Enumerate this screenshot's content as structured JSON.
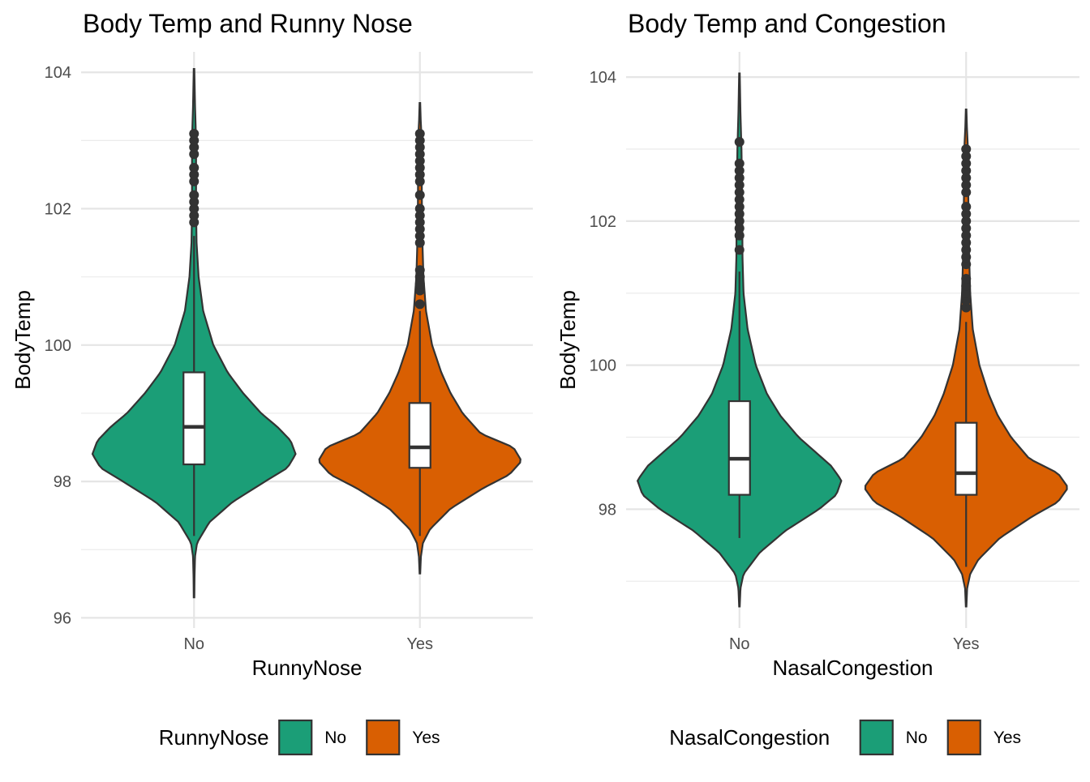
{
  "chart_data": [
    {
      "type": "violin",
      "title": "Body Temp and Runny Nose",
      "xlabel": "RunnyNose",
      "ylabel": "BodyTemp",
      "categories": [
        "No",
        "Yes"
      ],
      "yticks": [
        96,
        98,
        100,
        102,
        104
      ],
      "ylim": [
        95.85,
        104.3
      ],
      "grid": true,
      "legend": {
        "title": "RunnyNose",
        "position": "bottom",
        "entries": [
          "No",
          "Yes"
        ]
      },
      "series": [
        {
          "name": "No",
          "color": "#1B9E77",
          "range": [
            96.3,
            104.05
          ],
          "box": {
            "q1": 98.25,
            "median": 98.8,
            "q3": 99.6,
            "whisker_low": 97.2,
            "whisker_high": 101.6
          },
          "outliers": [
            101.8,
            101.9,
            102.0,
            102.1,
            102.2,
            102.4,
            102.5,
            102.6,
            102.8,
            102.9,
            103.0,
            103.1
          ],
          "density": [
            [
              96.3,
              0.003
            ],
            [
              96.6,
              0.005
            ],
            [
              96.9,
              0.01
            ],
            [
              97.1,
              0.03
            ],
            [
              97.4,
              0.15
            ],
            [
              97.7,
              0.38
            ],
            [
              98.0,
              0.7
            ],
            [
              98.2,
              0.92
            ],
            [
              98.4,
              1.0
            ],
            [
              98.6,
              0.95
            ],
            [
              98.8,
              0.82
            ],
            [
              99.0,
              0.66
            ],
            [
              99.3,
              0.48
            ],
            [
              99.6,
              0.33
            ],
            [
              100.0,
              0.19
            ],
            [
              100.5,
              0.09
            ],
            [
              101.0,
              0.045
            ],
            [
              101.5,
              0.025
            ],
            [
              102.0,
              0.02
            ],
            [
              102.5,
              0.02
            ],
            [
              103.0,
              0.02
            ],
            [
              103.5,
              0.01
            ],
            [
              104.05,
              0.003
            ]
          ]
        },
        {
          "name": "Yes",
          "color": "#D95F02",
          "range": [
            96.65,
            103.55
          ],
          "box": {
            "q1": 98.2,
            "median": 98.5,
            "q3": 99.15,
            "whisker_low": 97.2,
            "whisker_high": 100.5
          },
          "outliers": [
            100.6,
            100.8,
            100.9,
            101.0,
            101.1,
            101.5,
            101.6,
            101.7,
            101.8,
            101.9,
            102.0,
            102.2,
            102.4,
            102.5,
            102.6,
            102.7,
            102.8,
            102.9,
            103.0,
            103.1
          ],
          "density": [
            [
              96.65,
              0.003
            ],
            [
              96.9,
              0.01
            ],
            [
              97.1,
              0.03
            ],
            [
              97.3,
              0.1
            ],
            [
              97.6,
              0.3
            ],
            [
              97.9,
              0.62
            ],
            [
              98.1,
              0.88
            ],
            [
              98.3,
              1.0
            ],
            [
              98.5,
              0.92
            ],
            [
              98.7,
              0.6
            ],
            [
              99.0,
              0.42
            ],
            [
              99.3,
              0.3
            ],
            [
              99.6,
              0.21
            ],
            [
              100.0,
              0.12
            ],
            [
              100.5,
              0.06
            ],
            [
              101.0,
              0.035
            ],
            [
              101.5,
              0.025
            ],
            [
              102.0,
              0.02
            ],
            [
              102.5,
              0.018
            ],
            [
              103.0,
              0.018
            ],
            [
              103.3,
              0.008
            ],
            [
              103.55,
              0.003
            ]
          ]
        }
      ]
    },
    {
      "type": "violin",
      "title": "Body Temp and Congestion",
      "xlabel": "NasalCongestion",
      "ylabel": "BodyTemp",
      "categories": [
        "No",
        "Yes"
      ],
      "yticks": [
        98,
        100,
        102,
        104
      ],
      "ylim": [
        96.35,
        104.35
      ],
      "grid": true,
      "legend": {
        "title": "NasalCongestion",
        "position": "bottom",
        "entries": [
          "No",
          "Yes"
        ]
      },
      "series": [
        {
          "name": "No",
          "color": "#1B9E77",
          "range": [
            96.65,
            104.05
          ],
          "box": {
            "q1": 98.2,
            "median": 98.7,
            "q3": 99.5,
            "whisker_low": 97.6,
            "whisker_high": 101.3
          },
          "outliers": [
            101.6,
            101.8,
            101.9,
            102.0,
            102.1,
            102.2,
            102.3,
            102.4,
            102.5,
            102.6,
            102.7,
            102.8,
            103.1
          ],
          "density": [
            [
              96.65,
              0.003
            ],
            [
              96.9,
              0.01
            ],
            [
              97.1,
              0.04
            ],
            [
              97.4,
              0.2
            ],
            [
              97.7,
              0.45
            ],
            [
              98.0,
              0.78
            ],
            [
              98.2,
              0.95
            ],
            [
              98.4,
              1.0
            ],
            [
              98.6,
              0.9
            ],
            [
              98.8,
              0.74
            ],
            [
              99.0,
              0.58
            ],
            [
              99.3,
              0.4
            ],
            [
              99.6,
              0.27
            ],
            [
              100.0,
              0.16
            ],
            [
              100.5,
              0.08
            ],
            [
              101.0,
              0.04
            ],
            [
              101.5,
              0.03
            ],
            [
              102.0,
              0.028
            ],
            [
              102.5,
              0.025
            ],
            [
              103.0,
              0.02
            ],
            [
              103.5,
              0.01
            ],
            [
              104.05,
              0.003
            ]
          ]
        },
        {
          "name": "Yes",
          "color": "#D95F02",
          "range": [
            96.65,
            103.55
          ],
          "box": {
            "q1": 98.2,
            "median": 98.5,
            "q3": 99.2,
            "whisker_low": 97.2,
            "whisker_high": 100.6
          },
          "outliers": [
            100.8,
            100.9,
            101.0,
            101.1,
            101.2,
            101.4,
            101.5,
            101.6,
            101.7,
            101.8,
            101.9,
            102.0,
            102.1,
            102.2,
            102.4,
            102.5,
            102.6,
            102.7,
            102.8,
            102.9,
            103.0
          ],
          "density": [
            [
              96.65,
              0.003
            ],
            [
              96.9,
              0.01
            ],
            [
              97.1,
              0.04
            ],
            [
              97.3,
              0.12
            ],
            [
              97.6,
              0.33
            ],
            [
              97.9,
              0.65
            ],
            [
              98.1,
              0.9
            ],
            [
              98.3,
              1.0
            ],
            [
              98.5,
              0.9
            ],
            [
              98.7,
              0.62
            ],
            [
              99.0,
              0.44
            ],
            [
              99.3,
              0.31
            ],
            [
              99.6,
              0.22
            ],
            [
              100.0,
              0.13
            ],
            [
              100.5,
              0.065
            ],
            [
              101.0,
              0.04
            ],
            [
              101.5,
              0.03
            ],
            [
              102.0,
              0.025
            ],
            [
              102.5,
              0.02
            ],
            [
              103.0,
              0.018
            ],
            [
              103.3,
              0.008
            ],
            [
              103.55,
              0.003
            ]
          ]
        }
      ]
    }
  ]
}
